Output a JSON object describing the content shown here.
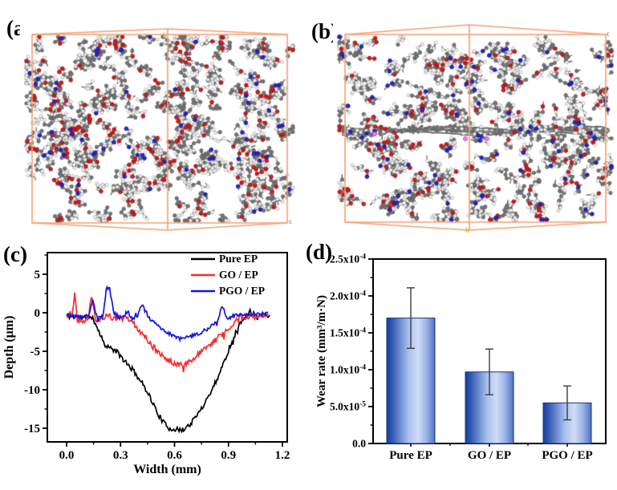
{
  "panels": {
    "a": {
      "label": "(a)"
    },
    "b": {
      "label": "(b)"
    },
    "c": {
      "label": "(c)"
    },
    "d": {
      "label": "(d)"
    }
  },
  "axis_markers": {
    "a_top_b": "b",
    "a_corner_c": "c",
    "b_corner_c": "c",
    "b_bottom_b": "b",
    "marker_green": "#57c557",
    "marker_yellow": "#cdb83a"
  },
  "simulation": {
    "box_color": "#f79e70",
    "atom_colors": {
      "carbon": "#767676",
      "carbon_stroke": "#565656",
      "hydrogen": "#f3f3f3",
      "hydrogen_stroke": "#a8a8a8",
      "oxygen": "#d21a1a",
      "nitrogen": "#2424cf",
      "phosphorus": "#ef7ae6",
      "bond": "#7c7c7c",
      "sheet": "#6d6d6d"
    },
    "panel_a": {
      "seed": 101,
      "chains": 238,
      "has_sheet": false
    },
    "panel_b": {
      "seed": 707,
      "chains": 222,
      "has_sheet": true
    }
  },
  "chart_data": [
    {
      "id": "wear-track-profile",
      "type": "line",
      "title": "",
      "xlabel": "Width (mm)",
      "ylabel": "Depth (μm)",
      "xlim": [
        -0.107,
        1.227
      ],
      "ylim": [
        -16.8,
        7.8
      ],
      "xticks": [
        "0.0",
        "0.3",
        "0.6",
        "0.9",
        "1.2"
      ],
      "xtick_values": [
        0.0,
        0.3,
        0.6,
        0.9,
        1.2
      ],
      "xminor_values": [
        0.15,
        0.45,
        0.75,
        1.05
      ],
      "yticks": [
        "5",
        "0",
        "-5",
        "-10",
        "-15"
      ],
      "ytick_values": [
        5,
        0,
        -5,
        -10,
        -15
      ],
      "yminor_values": [
        7.5,
        2.5,
        -2.5,
        -7.5,
        -12.5
      ],
      "grid": false,
      "legend_position": "top-right",
      "series": [
        {
          "name": "Pure EP",
          "color": "#000000",
          "seed": 11,
          "noise": 0.34,
          "points": [
            [
              0.0,
              -0.4
            ],
            [
              0.04,
              -0.5
            ],
            [
              0.08,
              -0.7
            ],
            [
              0.12,
              -0.5
            ],
            [
              0.15,
              -0.9
            ],
            [
              0.17,
              -1.8
            ],
            [
              0.19,
              -3.0
            ],
            [
              0.21,
              -4.0
            ],
            [
              0.24,
              -4.6
            ],
            [
              0.27,
              -4.9
            ],
            [
              0.3,
              -5.6
            ],
            [
              0.33,
              -6.6
            ],
            [
              0.36,
              -7.2
            ],
            [
              0.39,
              -8.1
            ],
            [
              0.42,
              -9.2
            ],
            [
              0.45,
              -10.2
            ],
            [
              0.48,
              -11.8
            ],
            [
              0.51,
              -13.2
            ],
            [
              0.54,
              -14.3
            ],
            [
              0.57,
              -15.0
            ],
            [
              0.6,
              -15.1
            ],
            [
              0.63,
              -15.3
            ],
            [
              0.66,
              -15.0
            ],
            [
              0.69,
              -14.4
            ],
            [
              0.72,
              -13.5
            ],
            [
              0.75,
              -12.4
            ],
            [
              0.78,
              -11.2
            ],
            [
              0.81,
              -9.9
            ],
            [
              0.84,
              -8.4
            ],
            [
              0.87,
              -6.7
            ],
            [
              0.9,
              -4.9
            ],
            [
              0.93,
              -3.1
            ],
            [
              0.96,
              -1.6
            ],
            [
              0.99,
              -0.6
            ],
            [
              1.02,
              0.1
            ],
            [
              1.05,
              -0.2
            ],
            [
              1.08,
              -0.4
            ],
            [
              1.11,
              -0.1
            ],
            [
              1.13,
              -0.2
            ]
          ]
        },
        {
          "name": "GO / EP",
          "color": "#f62d2d",
          "seed": 22,
          "noise": 0.4,
          "points": [
            [
              0.0,
              -0.4
            ],
            [
              0.03,
              -0.2
            ],
            [
              0.045,
              2.4
            ],
            [
              0.06,
              -0.9
            ],
            [
              0.09,
              -1.0
            ],
            [
              0.12,
              -0.5
            ],
            [
              0.14,
              2.2
            ],
            [
              0.16,
              -0.9
            ],
            [
              0.19,
              -0.6
            ],
            [
              0.22,
              -0.5
            ],
            [
              0.25,
              -0.6
            ],
            [
              0.28,
              -0.5
            ],
            [
              0.31,
              -0.9
            ],
            [
              0.33,
              -0.5
            ],
            [
              0.35,
              -1.1
            ],
            [
              0.38,
              -1.6
            ],
            [
              0.41,
              -2.4
            ],
            [
              0.44,
              -3.2
            ],
            [
              0.47,
              -4.1
            ],
            [
              0.5,
              -4.9
            ],
            [
              0.53,
              -5.6
            ],
            [
              0.56,
              -6.1
            ],
            [
              0.59,
              -6.4
            ],
            [
              0.62,
              -6.6
            ],
            [
              0.65,
              -6.9
            ],
            [
              0.68,
              -6.4
            ],
            [
              0.71,
              -5.9
            ],
            [
              0.74,
              -5.3
            ],
            [
              0.77,
              -4.7
            ],
            [
              0.8,
              -4.1
            ],
            [
              0.83,
              -3.5
            ],
            [
              0.86,
              -2.9
            ],
            [
              0.89,
              -2.2
            ],
            [
              0.92,
              -1.5
            ],
            [
              0.95,
              -0.9
            ],
            [
              0.98,
              -0.6
            ],
            [
              1.01,
              -0.4
            ],
            [
              1.04,
              -0.5
            ],
            [
              1.07,
              -0.4
            ],
            [
              1.1,
              -0.3
            ],
            [
              1.12,
              -0.1
            ]
          ]
        },
        {
          "name": "PGO / EP",
          "color": "#1414e8",
          "seed": 33,
          "noise": 0.26,
          "points": [
            [
              0.0,
              -0.3
            ],
            [
              0.04,
              -0.4
            ],
            [
              0.08,
              -0.6
            ],
            [
              0.12,
              -0.4
            ],
            [
              0.145,
              1.6
            ],
            [
              0.17,
              -0.7
            ],
            [
              0.2,
              -0.5
            ],
            [
              0.225,
              3.4
            ],
            [
              0.24,
              3.0
            ],
            [
              0.26,
              0.2
            ],
            [
              0.29,
              -0.7
            ],
            [
              0.32,
              -0.4
            ],
            [
              0.34,
              0.2
            ],
            [
              0.36,
              -0.7
            ],
            [
              0.39,
              -0.6
            ],
            [
              0.42,
              1.2
            ],
            [
              0.45,
              -0.5
            ],
            [
              0.48,
              -1.1
            ],
            [
              0.51,
              -1.7
            ],
            [
              0.54,
              -2.3
            ],
            [
              0.57,
              -2.7
            ],
            [
              0.6,
              -3.0
            ],
            [
              0.63,
              -3.4
            ],
            [
              0.66,
              -3.3
            ],
            [
              0.69,
              -3.1
            ],
            [
              0.72,
              -2.9
            ],
            [
              0.75,
              -2.6
            ],
            [
              0.78,
              -2.1
            ],
            [
              0.81,
              -1.6
            ],
            [
              0.84,
              -1.1
            ],
            [
              0.865,
              1.0
            ],
            [
              0.89,
              -0.7
            ],
            [
              0.92,
              -0.5
            ],
            [
              0.95,
              -0.4
            ],
            [
              0.98,
              -0.3
            ],
            [
              1.01,
              -0.3
            ],
            [
              1.04,
              -0.2
            ],
            [
              1.07,
              -0.3
            ],
            [
              1.1,
              -0.1
            ],
            [
              1.12,
              -0.1
            ]
          ]
        }
      ]
    },
    {
      "id": "wear-rate",
      "type": "bar",
      "title": "",
      "xlabel": "",
      "ylabel": "Wear rate (mm³/m·N)",
      "categories": [
        "Pure EP",
        "GO / EP",
        "PGO / EP"
      ],
      "values": [
        0.00017,
        9.7e-05,
        5.5e-05
      ],
      "errors": [
        4.1e-05,
        3.1e-05,
        2.3e-05
      ],
      "ylim": [
        0,
        0.00025
      ],
      "ytick_labels": [
        "0.0",
        "5.0x10^-5",
        "1.0x10^-4",
        "1.5x10^-4",
        "2.0x10^-4",
        "2.5x10^-4"
      ],
      "ytick_values": [
        0,
        5e-05,
        0.0001,
        0.00015,
        0.0002,
        0.00025
      ],
      "grid": false,
      "bar_gradient": [
        "#17419f",
        "#2a52ae",
        "#a9c0ec",
        "#cfdcf7",
        "#9db4e6",
        "#5272c2"
      ],
      "bar_border": "#16337a",
      "error_color": "#3c3c3c"
    }
  ]
}
